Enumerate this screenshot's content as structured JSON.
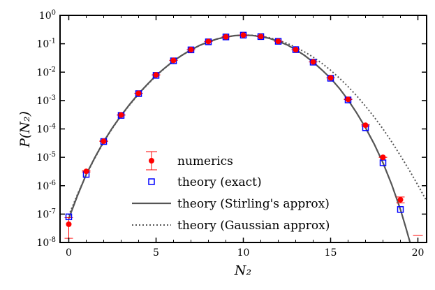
{
  "chart_data": {
    "type": "scatter",
    "xlabel": "N₂",
    "ylabel": "P(N₂)",
    "xlim": [
      -0.5,
      20.5
    ],
    "ylim": [
      1e-08,
      1
    ],
    "yscale": "log",
    "xticks": [
      0,
      5,
      10,
      15,
      20
    ],
    "yticks": [
      {
        "value": 1,
        "base": "10",
        "exp": "0"
      },
      {
        "value": 0.1,
        "base": "10",
        "exp": "-1"
      },
      {
        "value": 0.01,
        "base": "10",
        "exp": "-2"
      },
      {
        "value": 0.001,
        "base": "10",
        "exp": "-3"
      },
      {
        "value": 0.0001,
        "base": "10",
        "exp": "-4"
      },
      {
        "value": 1e-05,
        "base": "10",
        "exp": "-5"
      },
      {
        "value": 1e-06,
        "base": "10",
        "exp": "-6"
      },
      {
        "value": 1e-07,
        "base": "10",
        "exp": "-7"
      },
      {
        "value": 1e-08,
        "base": "10",
        "exp": "-8"
      }
    ],
    "grid": false,
    "legend_position": "bottom-center",
    "series": [
      {
        "name": "numerics",
        "style": "markers-errorbars",
        "color": "#ff0000",
        "x": [
          0,
          1,
          2,
          3,
          4,
          5,
          6,
          7,
          8,
          9,
          10,
          11,
          12,
          13,
          14,
          15,
          16,
          17,
          18,
          19,
          20
        ],
        "y": [
          4.4e-08,
          3.2e-06,
          3.7e-05,
          0.00031,
          0.0018,
          0.008,
          0.026,
          0.062,
          0.12,
          0.175,
          0.202,
          0.18,
          0.122,
          0.062,
          0.023,
          0.0063,
          0.0011,
          0.000135,
          1e-05,
          3.2e-07,
          null
        ],
        "err_low": [
          1.4e-08,
          3.05e-06,
          3.6e-05,
          0.000305,
          0.00179,
          0.00795,
          0.0258,
          0.0618,
          0.119,
          0.174,
          0.2,
          0.179,
          0.121,
          0.0618,
          0.0228,
          0.00625,
          0.00108,
          0.000128,
          1e-05,
          2.5e-07,
          1.8e-08
        ],
        "err_high": [
          7.5e-08,
          3.4e-06,
          3.8e-05,
          0.000315,
          0.00181,
          0.00805,
          0.0262,
          0.0622,
          0.121,
          0.176,
          0.204,
          0.181,
          0.123,
          0.0622,
          0.0232,
          0.00635,
          0.00112,
          0.000142,
          1e-05,
          4e-07,
          null
        ]
      },
      {
        "name": "theory (exact)",
        "style": "open-squares",
        "color": "#0000ff",
        "x": [
          0,
          1,
          2,
          3,
          4,
          5,
          6,
          7,
          8,
          9,
          10,
          11,
          12,
          13,
          14,
          15,
          16,
          17,
          18,
          19
        ],
        "y": [
          8e-08,
          2.5e-06,
          3.6e-05,
          0.0003,
          0.00175,
          0.0077,
          0.025,
          0.061,
          0.117,
          0.174,
          0.201,
          0.179,
          0.122,
          0.062,
          0.0225,
          0.0061,
          0.00105,
          0.00011,
          6.4e-06,
          1.45e-07
        ]
      },
      {
        "name": "theory (Stirling's approx)",
        "style": "solid-line",
        "color": "#555555",
        "x": [
          0,
          0.5,
          1,
          1.5,
          2,
          2.5,
          3,
          3.5,
          4,
          4.5,
          5,
          5.5,
          6,
          6.5,
          7,
          7.5,
          8,
          8.5,
          9,
          9.5,
          10,
          10.5,
          11,
          11.5,
          12,
          12.5,
          13,
          13.5,
          14,
          14.5,
          15,
          15.5,
          16,
          16.5,
          17,
          17.5,
          18,
          18.5,
          19,
          19.3,
          19.55
        ],
        "y": [
          7e-08,
          4.5e-07,
          2.5e-06,
          1e-05,
          3.6e-05,
          0.00011,
          0.0003,
          0.00075,
          0.00175,
          0.0037,
          0.0077,
          0.014,
          0.025,
          0.04,
          0.061,
          0.088,
          0.117,
          0.148,
          0.174,
          0.193,
          0.201,
          0.197,
          0.179,
          0.155,
          0.122,
          0.092,
          0.062,
          0.039,
          0.0225,
          0.012,
          0.0061,
          0.0027,
          0.00105,
          0.00036,
          0.00011,
          2.9e-05,
          6.4e-06,
          1.1e-06,
          1.45e-07,
          3.5e-08,
          1e-08
        ]
      },
      {
        "name": "theory (Gaussian approx)",
        "style": "dotted-line",
        "color": "#555555",
        "x": [
          0,
          0.5,
          1,
          1.5,
          2,
          2.5,
          3,
          3.5,
          4,
          4.5,
          5,
          5.5,
          6,
          6.5,
          7,
          7.5,
          8,
          8.5,
          9,
          9.5,
          10,
          10.5,
          11,
          11.5,
          12,
          12.5,
          13,
          13.5,
          14,
          14.5,
          15,
          15.5,
          16,
          16.5,
          17,
          17.5,
          18,
          18.5,
          19,
          19.5,
          20,
          20.5
        ],
        "y": [
          9e-08,
          5e-07,
          2.4e-06,
          9.5e-06,
          3.4e-05,
          0.000105,
          0.00029,
          0.00072,
          0.0017,
          0.0036,
          0.0074,
          0.0138,
          0.0245,
          0.0395,
          0.06,
          0.087,
          0.116,
          0.146,
          0.173,
          0.193,
          0.201,
          0.199,
          0.185,
          0.163,
          0.134,
          0.104,
          0.076,
          0.052,
          0.034,
          0.0205,
          0.0117,
          0.0062,
          0.0031,
          0.00145,
          0.00063,
          0.00026,
          0.0001,
          3.5e-05,
          1.15e-05,
          3.6e-06,
          1.05e-06,
          2.9e-07
        ]
      }
    ]
  }
}
